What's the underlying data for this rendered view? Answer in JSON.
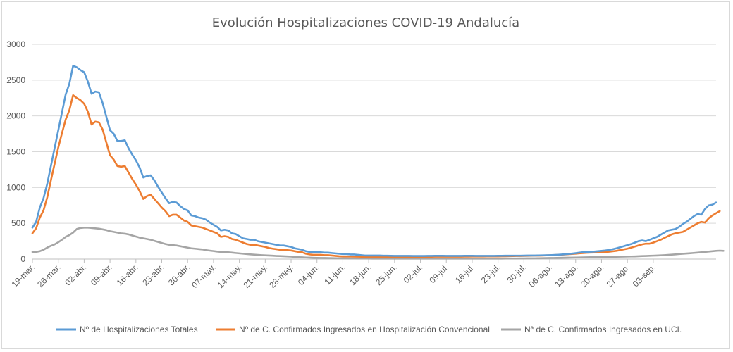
{
  "chart_data": {
    "type": "line",
    "title": "Evolución Hospitalizaciones COVID-19 Andalucía",
    "xlabel": "",
    "ylabel": "",
    "ylim": [
      0,
      3000
    ],
    "y_ticks": [
      "0",
      "500",
      "1000",
      "1500",
      "2000",
      "2500",
      "3000"
    ],
    "x_tick_labels": [
      "19-mar.",
      "26-mar.",
      "02-abr.",
      "09-abr.",
      "16-abr.",
      "23-abr.",
      "30-abr.",
      "07-may.",
      "14-may.",
      "21-may.",
      "28-may.",
      "04-jun.",
      "11-jun.",
      "18-jun.",
      "25-jun.",
      "02-jul.",
      "09-jul.",
      "16-jul.",
      "23-jul.",
      "30-jul.",
      "06-ago.",
      "13-ago.",
      "20-ago.",
      "27-ago.",
      "03-sep."
    ],
    "x_day_index_note_free": true,
    "grid": true,
    "legend_position": "bottom",
    "series": [
      {
        "name": "Nº de Hospitalizaciones Totales",
        "color": "#5b9bd5",
        "values": [
          440,
          520,
          720,
          850,
          1050,
          1300,
          1550,
          1800,
          2050,
          2300,
          2450,
          2700,
          2680,
          2640,
          2610,
          2480,
          2310,
          2340,
          2330,
          2180,
          1990,
          1800,
          1750,
          1650,
          1650,
          1660,
          1550,
          1460,
          1380,
          1280,
          1140,
          1160,
          1170,
          1100,
          1010,
          930,
          850,
          780,
          800,
          790,
          740,
          700,
          680,
          610,
          600,
          580,
          570,
          550,
          510,
          480,
          450,
          400,
          410,
          400,
          360,
          350,
          320,
          290,
          280,
          270,
          270,
          250,
          240,
          230,
          220,
          210,
          200,
          190,
          190,
          180,
          170,
          150,
          140,
          130,
          110,
          100,
          95,
          95,
          95,
          90,
          90,
          85,
          80,
          75,
          70,
          70,
          65,
          65,
          60,
          55,
          50,
          50,
          50,
          50,
          50,
          48,
          48,
          46,
          45,
          45,
          45,
          45,
          45,
          44,
          44,
          44,
          44,
          45,
          45,
          46,
          46,
          46,
          45,
          45,
          45,
          45,
          45,
          46,
          46,
          46,
          45,
          45,
          45,
          45,
          45,
          45,
          46,
          46,
          47,
          47,
          48,
          48,
          48,
          49,
          50,
          50,
          50,
          51,
          52,
          53,
          55,
          57,
          60,
          63,
          67,
          72,
          77,
          83,
          90,
          97,
          100,
          103,
          105,
          110,
          115,
          120,
          128,
          137,
          150,
          165,
          180,
          195,
          210,
          230,
          250,
          260,
          250,
          270,
          290,
          310,
          340,
          370,
          400,
          410,
          420,
          450,
          490,
          520,
          560,
          600,
          630,
          620,
          700,
          750,
          760,
          790
        ]
      },
      {
        "name": "Nº de C. Confirmados Ingresados en Hospitalización Convencional",
        "color": "#ed7d31",
        "values": [
          360,
          430,
          580,
          680,
          860,
          1100,
          1330,
          1560,
          1760,
          1950,
          2080,
          2290,
          2250,
          2220,
          2170,
          2060,
          1880,
          1920,
          1910,
          1810,
          1630,
          1450,
          1390,
          1300,
          1290,
          1300,
          1210,
          1120,
          1040,
          950,
          840,
          880,
          900,
          840,
          780,
          720,
          670,
          600,
          620,
          620,
          580,
          540,
          520,
          470,
          460,
          450,
          440,
          420,
          400,
          380,
          360,
          310,
          320,
          310,
          280,
          270,
          250,
          230,
          210,
          200,
          200,
          190,
          180,
          170,
          155,
          145,
          138,
          130,
          128,
          125,
          120,
          110,
          100,
          95,
          75,
          65,
          60,
          60,
          60,
          55,
          55,
          50,
          45,
          40,
          38,
          38,
          36,
          35,
          34,
          33,
          32,
          32,
          32,
          32,
          32,
          32,
          32,
          32,
          32,
          32,
          32,
          32,
          32,
          32,
          32,
          32,
          32,
          33,
          33,
          34,
          34,
          34,
          34,
          34,
          34,
          34,
          34,
          35,
          35,
          36,
          36,
          36,
          36,
          37,
          37,
          38,
          38,
          39,
          40,
          41,
          42,
          43,
          44,
          45,
          46,
          47,
          48,
          49,
          50,
          52,
          54,
          56,
          58,
          61,
          64,
          68,
          72,
          76,
          80,
          84,
          88,
          90,
          91,
          92,
          95,
          98,
          102,
          108,
          115,
          125,
          135,
          145,
          160,
          175,
          190,
          205,
          215,
          215,
          230,
          250,
          270,
          295,
          320,
          345,
          360,
          370,
          380,
          410,
          440,
          470,
          500,
          520,
          510,
          570,
          610,
          640,
          670
        ]
      },
      {
        "name": "Nª de C. Confirmados Ingresados en UCI.",
        "color": "#a5a5a5",
        "values": [
          100,
          100,
          110,
          130,
          160,
          185,
          205,
          235,
          270,
          310,
          335,
          370,
          420,
          435,
          440,
          440,
          435,
          430,
          425,
          415,
          405,
          390,
          380,
          370,
          360,
          355,
          345,
          330,
          315,
          300,
          290,
          280,
          270,
          255,
          240,
          225,
          210,
          200,
          195,
          190,
          180,
          170,
          160,
          150,
          145,
          140,
          135,
          125,
          118,
          112,
          105,
          100,
          96,
          95,
          90,
          85,
          80,
          75,
          70,
          66,
          62,
          58,
          55,
          52,
          50,
          47,
          44,
          42,
          40,
          38,
          35,
          30,
          27,
          25,
          22,
          20,
          18,
          17,
          16,
          15,
          14,
          13,
          12,
          11,
          10,
          10,
          9,
          9,
          8,
          8,
          8,
          8,
          7,
          7,
          7,
          7,
          7,
          7,
          7,
          7,
          7,
          7,
          7,
          7,
          7,
          7,
          7,
          7,
          7,
          7,
          7,
          7,
          7,
          7,
          7,
          7,
          7,
          7,
          7,
          7,
          7,
          7,
          7,
          7,
          7,
          7,
          7,
          7,
          8,
          8,
          8,
          8,
          9,
          9,
          10,
          10,
          11,
          12,
          13,
          14,
          15,
          16,
          17,
          18,
          19,
          20,
          21,
          22,
          23,
          24,
          25,
          26,
          27,
          28,
          29,
          30,
          31,
          32,
          33,
          34,
          35,
          36,
          37,
          38,
          40,
          42,
          44,
          46,
          48,
          50,
          52,
          55,
          58,
          62,
          66,
          70,
          74,
          78,
          82,
          86,
          90,
          95,
          100,
          105,
          110,
          115,
          118,
          115
        ]
      }
    ]
  }
}
